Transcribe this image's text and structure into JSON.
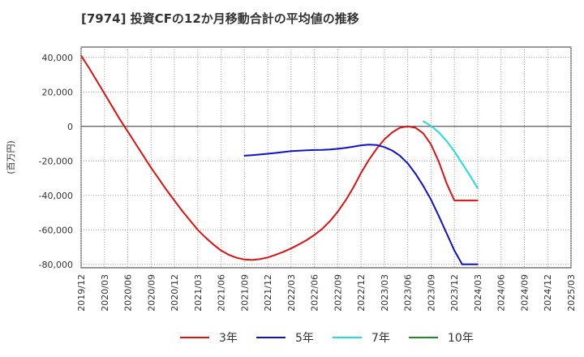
{
  "title": "[7974]  投資CFの12か月移動合計の平均値の推移",
  "chart_data": {
    "type": "line",
    "ylabel": "(百万円)",
    "xlabel": "",
    "x_ticks": [
      "2019/12",
      "2020/03",
      "2020/06",
      "2020/09",
      "2020/12",
      "2021/03",
      "2021/06",
      "2021/09",
      "2021/12",
      "2022/03",
      "2022/06",
      "2022/09",
      "2022/12",
      "2023/03",
      "2023/06",
      "2023/09",
      "2023/12",
      "2024/03",
      "2024/06",
      "2024/09",
      "2024/12",
      "2025/03"
    ],
    "y_ticks": [
      40000,
      20000,
      0,
      -20000,
      -40000,
      -60000,
      -80000
    ],
    "y_tick_labels": [
      "40,000",
      "20,000",
      "0",
      "-20,000",
      "-40,000",
      "-60,000",
      "-80,000"
    ],
    "ylim": [
      -82000,
      46000
    ],
    "grid": true,
    "legend_position": "bottom",
    "series": [
      {
        "name": "3年",
        "color": "#dd1111",
        "x": [
          "2019/12",
          "2020/01",
          "2020/02",
          "2020/03",
          "2020/04",
          "2020/05",
          "2020/06",
          "2020/07",
          "2020/08",
          "2020/09",
          "2020/10",
          "2020/11",
          "2020/12",
          "2021/01",
          "2021/02",
          "2021/03",
          "2021/04",
          "2021/05",
          "2021/06",
          "2021/07",
          "2021/08",
          "2021/09",
          "2021/10",
          "2021/11",
          "2021/12",
          "2022/01",
          "2022/02",
          "2022/03",
          "2022/04",
          "2022/05",
          "2022/06",
          "2022/07",
          "2022/08",
          "2022/09",
          "2022/10",
          "2022/11",
          "2022/12",
          "2023/01",
          "2023/02",
          "2023/03",
          "2023/04",
          "2023/05",
          "2023/06",
          "2023/07",
          "2023/08",
          "2023/09",
          "2023/10",
          "2023/11",
          "2023/12",
          "2024/01",
          "2024/02",
          "2024/03"
        ],
        "values": [
          41000,
          34000,
          26500,
          19000,
          11500,
          4000,
          -3000,
          -10000,
          -17000,
          -24000,
          -30500,
          -37000,
          -43000,
          -49000,
          -54500,
          -60000,
          -64500,
          -68500,
          -72000,
          -74500,
          -76200,
          -77200,
          -77500,
          -77000,
          -76000,
          -74500,
          -72800,
          -70800,
          -68500,
          -66000,
          -63000,
          -59500,
          -55000,
          -49500,
          -43000,
          -35500,
          -27000,
          -19500,
          -13000,
          -7500,
          -3500,
          -800,
          0,
          -800,
          -4000,
          -10500,
          -20500,
          -33000,
          -43000,
          -43000,
          -43000,
          -43000
        ]
      },
      {
        "name": "5年",
        "color": "#1111cc",
        "x": [
          "2021/09",
          "2021/10",
          "2021/11",
          "2021/12",
          "2022/01",
          "2022/02",
          "2022/03",
          "2022/04",
          "2022/05",
          "2022/06",
          "2022/07",
          "2022/08",
          "2022/09",
          "2022/10",
          "2022/11",
          "2022/12",
          "2023/01",
          "2023/02",
          "2023/03",
          "2023/04",
          "2023/05",
          "2023/06",
          "2023/07",
          "2023/08",
          "2023/09",
          "2023/10",
          "2023/11",
          "2023/12",
          "2024/01",
          "2024/02",
          "2024/03"
        ],
        "values": [
          -17000,
          -16700,
          -16300,
          -15900,
          -15400,
          -14900,
          -14400,
          -14100,
          -13900,
          -13700,
          -13600,
          -13400,
          -13000,
          -12500,
          -11800,
          -11000,
          -10600,
          -10800,
          -12000,
          -14000,
          -17000,
          -21500,
          -27500,
          -34500,
          -42500,
          -52000,
          -62000,
          -72000,
          -80000,
          -80000,
          -80000
        ]
      },
      {
        "name": "7年",
        "color": "#22dddd",
        "x": [
          "2023/08",
          "2023/09",
          "2023/10",
          "2023/11",
          "2023/12",
          "2024/01",
          "2024/02",
          "2024/03"
        ],
        "values": [
          3000,
          300,
          -3500,
          -8500,
          -14500,
          -21500,
          -28500,
          -36000
        ]
      },
      {
        "name": "10年",
        "color": "#228822",
        "x": [],
        "values": []
      }
    ]
  }
}
